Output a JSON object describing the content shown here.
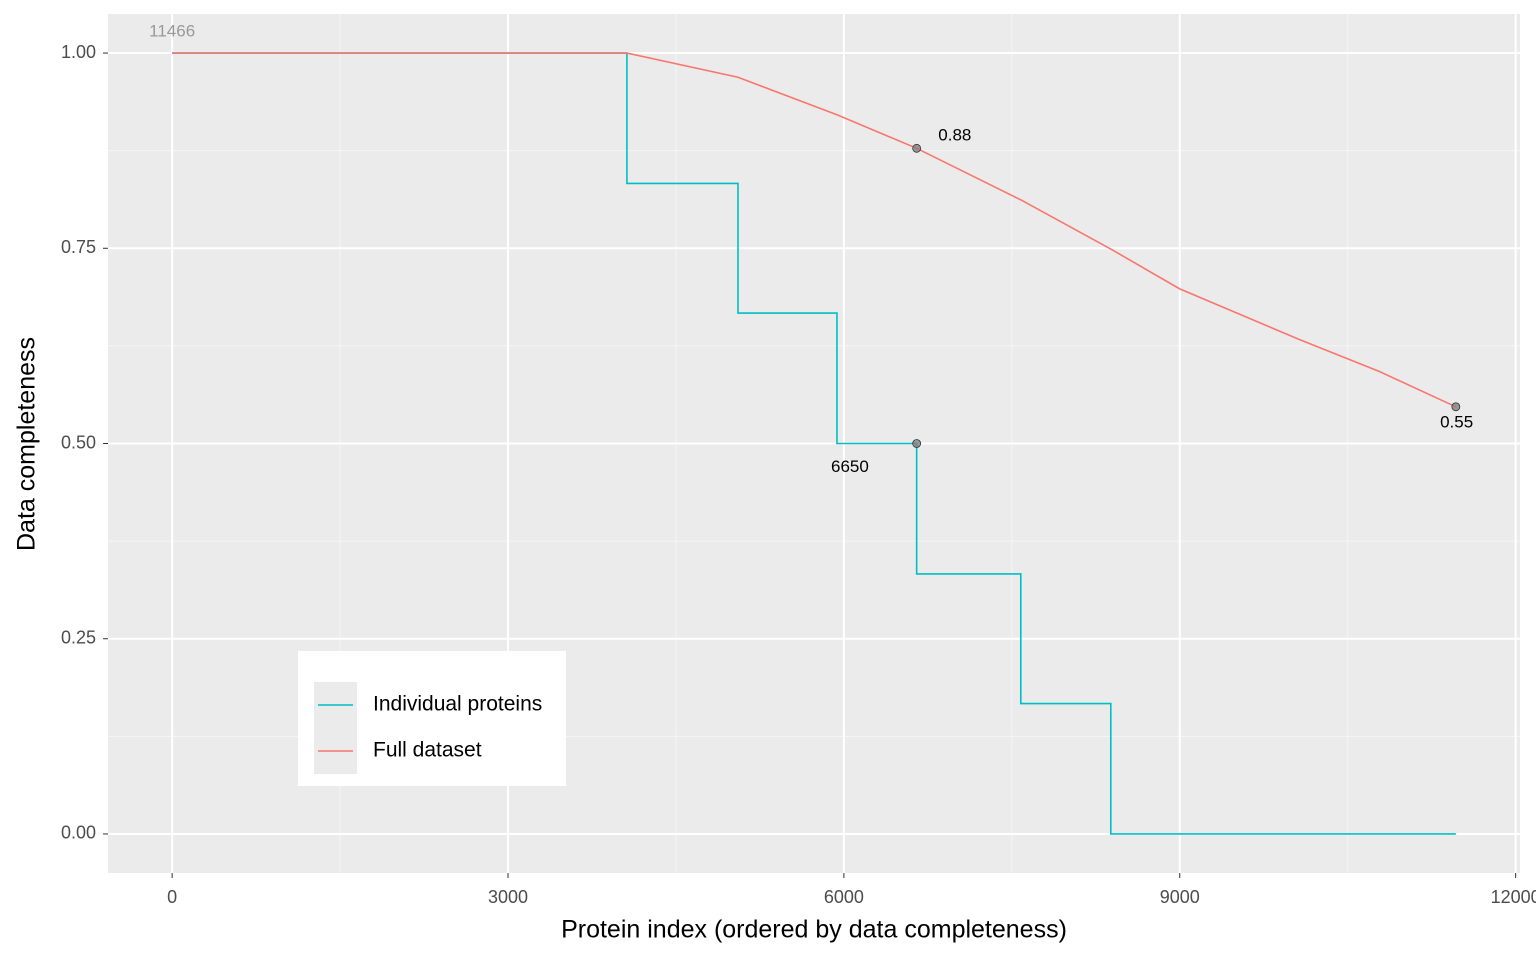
{
  "chart_data": {
    "type": "line",
    "xlabel": "Protein index (ordered by data completeness)",
    "ylabel": "Data completeness",
    "xlim": [
      -573,
      12039
    ],
    "ylim": [
      -0.05,
      1.05
    ],
    "xticks": [
      0,
      3000,
      6000,
      9000,
      12000
    ],
    "yticks": [
      {
        "value": 0,
        "label": "0.00"
      },
      {
        "value": 0.25,
        "label": "0.25"
      },
      {
        "value": 0.5,
        "label": "0.50"
      },
      {
        "value": 0.75,
        "label": "0.75"
      },
      {
        "value": 1,
        "label": "1.00"
      }
    ],
    "xminor": [
      1500,
      4500,
      7500,
      10500
    ],
    "yminor": [
      0.125,
      0.375,
      0.625,
      0.875
    ],
    "grid": true,
    "series": [
      {
        "name": "Individual proteins",
        "color": "#00BFC4",
        "x": [
          0,
          4062,
          4062,
          5054,
          5054,
          5938,
          5938,
          6650,
          6650,
          7580,
          7580,
          8384,
          8384,
          11466
        ],
        "values": [
          1,
          1,
          0.833,
          0.833,
          0.667,
          0.667,
          0.5,
          0.5,
          0.333,
          0.333,
          0.167,
          0.167,
          0,
          0
        ]
      },
      {
        "name": "Full dataset",
        "color": "#F8766D",
        "x": [
          0,
          4062,
          5054,
          5938,
          6650,
          7580,
          8384,
          9000,
          10071,
          10786,
          11466
        ],
        "values": [
          1,
          1,
          0.969,
          0.921,
          0.878,
          0.812,
          0.749,
          0.698,
          0.633,
          0.592,
          0.547
        ]
      }
    ],
    "points": {
      "color": "#7f7f7f",
      "x": [
        6650,
        6650,
        11466
      ],
      "values": [
        0.878,
        0.5,
        0.547
      ]
    },
    "annotations": [
      {
        "text": "0.88",
        "x": 6991,
        "y": 0.894,
        "color": "#000000"
      },
      {
        "text": "0.55",
        "x": 11473,
        "y": 0.526,
        "color": "#000000"
      },
      {
        "text": "6650",
        "x": 6054,
        "y": 0.469,
        "color": "#000000"
      },
      {
        "text": "11466",
        "x": 0,
        "y": 1.027,
        "color": "#999999"
      }
    ]
  }
}
